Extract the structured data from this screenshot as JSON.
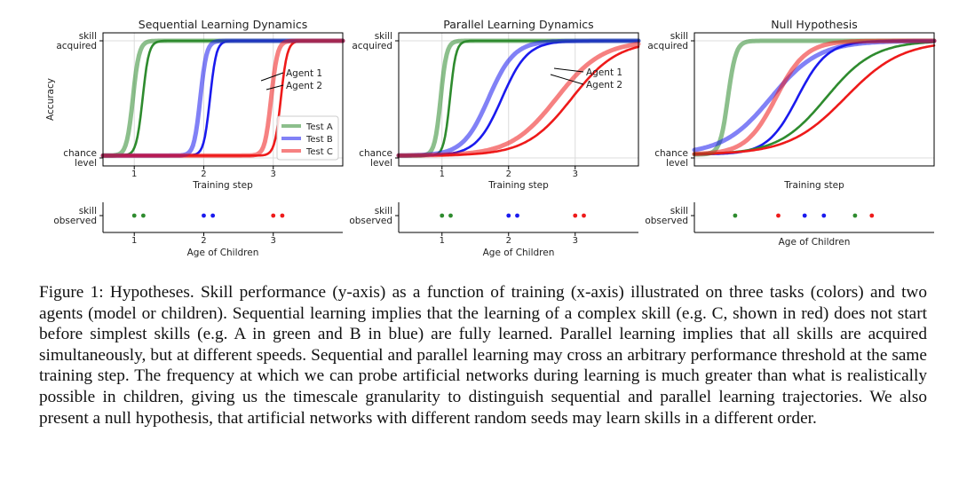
{
  "figure": {
    "colors": {
      "test_a": "#2e8b2e",
      "test_b": "#1a1aee",
      "test_c": "#ee1a1a"
    },
    "chart_data": [
      {
        "type": "line",
        "title": "Sequential Learning Dynamics",
        "xlabel": "Training step",
        "ylabel": "Accuracy",
        "x_ticks": [
          "1",
          "2",
          "3"
        ],
        "x_tick_values": [
          1,
          2,
          3
        ],
        "xlim": [
          0.55,
          4.0
        ],
        "y_tick_labels": {
          "top": [
            "skill",
            "acquired"
          ],
          "bottom": [
            "chance",
            "level"
          ]
        },
        "legend": {
          "position": "lower-right",
          "entries": [
            "Test A",
            "Test B",
            "Test C"
          ]
        },
        "annotations": [
          "Agent 1",
          "Agent 2"
        ],
        "grid": true,
        "series": [
          {
            "name": "Test A",
            "agent": 1,
            "curve": "logistic",
            "midpoint": 0.98,
            "slope": 22,
            "floor": 0.02,
            "ceil": 1.0
          },
          {
            "name": "Test A",
            "agent": 2,
            "curve": "logistic",
            "midpoint": 1.12,
            "slope": 22,
            "floor": 0.02,
            "ceil": 1.0
          },
          {
            "name": "Test B",
            "agent": 1,
            "curve": "logistic",
            "midpoint": 1.95,
            "slope": 22,
            "floor": 0.02,
            "ceil": 1.0
          },
          {
            "name": "Test B",
            "agent": 2,
            "curve": "logistic",
            "midpoint": 2.09,
            "slope": 22,
            "floor": 0.02,
            "ceil": 1.0
          },
          {
            "name": "Test C",
            "agent": 1,
            "curve": "logistic",
            "midpoint": 2.97,
            "slope": 22,
            "floor": 0.02,
            "ceil": 1.0
          },
          {
            "name": "Test C",
            "agent": 2,
            "curve": "logistic",
            "midpoint": 3.11,
            "slope": 22,
            "floor": 0.02,
            "ceil": 1.0
          }
        ]
      },
      {
        "type": "line",
        "title": "Parallel Learning Dynamics",
        "xlabel": "Training step",
        "ylabel": "",
        "x_ticks": [
          "1",
          "2",
          "3"
        ],
        "x_tick_values": [
          1,
          2,
          3
        ],
        "xlim": [
          0.35,
          3.95
        ],
        "y_tick_labels": {
          "top": [
            "skill",
            "acquired"
          ],
          "bottom": [
            "chance",
            "level"
          ]
        },
        "annotations": [
          "Agent 1",
          "Agent 2"
        ],
        "grid": true,
        "series": [
          {
            "name": "Test A",
            "agent": 1,
            "curve": "logistic",
            "midpoint": 0.98,
            "slope": 22,
            "floor": 0.02,
            "ceil": 1.0
          },
          {
            "name": "Test A",
            "agent": 2,
            "curve": "logistic",
            "midpoint": 1.12,
            "slope": 22,
            "floor": 0.02,
            "ceil": 1.0
          },
          {
            "name": "Test B",
            "agent": 1,
            "curve": "logistic",
            "midpoint": 1.7,
            "slope": 5.2,
            "floor": 0.02,
            "ceil": 1.0
          },
          {
            "name": "Test B",
            "agent": 2,
            "curve": "logistic",
            "midpoint": 1.9,
            "slope": 5.2,
            "floor": 0.02,
            "ceil": 1.0
          },
          {
            "name": "Test C",
            "agent": 1,
            "curve": "logistic",
            "midpoint": 2.72,
            "slope": 2.9,
            "floor": 0.02,
            "ceil": 1.0
          },
          {
            "name": "Test C",
            "agent": 2,
            "curve": "logistic",
            "midpoint": 2.95,
            "slope": 2.9,
            "floor": 0.02,
            "ceil": 1.0
          }
        ]
      },
      {
        "type": "line",
        "title": "Null Hypothesis",
        "xlabel": "Training step",
        "ylabel": "",
        "x_ticks": [],
        "xlim": [
          0.0,
          10.0
        ],
        "y_tick_labels": {
          "top": [
            "skill",
            "acquired"
          ],
          "bottom": [
            "chance",
            "level"
          ]
        },
        "grid": true,
        "series": [
          {
            "name": "Test A",
            "agent": 1,
            "curve": "logistic",
            "midpoint": 1.4,
            "slope": 6.0,
            "floor": 0.03,
            "ceil": 1.0
          },
          {
            "name": "Test B",
            "agent": 1,
            "curve": "logistic",
            "midpoint": 3.2,
            "slope": 1.0,
            "floor": 0.03,
            "ceil": 1.0
          },
          {
            "name": "Test C",
            "agent": 1,
            "curve": "logistic",
            "midpoint": 3.4,
            "slope": 1.6,
            "floor": 0.03,
            "ceil": 1.0
          },
          {
            "name": "Test B",
            "agent": 2,
            "curve": "logistic",
            "midpoint": 4.3,
            "slope": 1.6,
            "floor": 0.03,
            "ceil": 1.0
          },
          {
            "name": "Test A",
            "agent": 2,
            "curve": "logistic",
            "midpoint": 5.5,
            "slope": 1.0,
            "floor": 0.03,
            "ceil": 1.0
          },
          {
            "name": "Test C",
            "agent": 2,
            "curve": "logistic",
            "midpoint": 6.3,
            "slope": 0.85,
            "floor": 0.03,
            "ceil": 1.0
          }
        ]
      }
    ],
    "observed": [
      {
        "ylabel": [
          "skill",
          "observed"
        ],
        "xlabel": "Age of Children",
        "x_ticks": [
          "1",
          "2",
          "3"
        ],
        "x_tick_values": [
          1,
          2,
          3
        ],
        "xlim": [
          0.55,
          4.0
        ],
        "points": [
          {
            "x": 1.0,
            "test": "A"
          },
          {
            "x": 1.13,
            "test": "A"
          },
          {
            "x": 2.0,
            "test": "B"
          },
          {
            "x": 2.13,
            "test": "B"
          },
          {
            "x": 3.0,
            "test": "C"
          },
          {
            "x": 3.13,
            "test": "C"
          }
        ]
      },
      {
        "ylabel": [
          "skill",
          "observed"
        ],
        "xlabel": "Age of Children",
        "x_ticks": [
          "1",
          "2",
          "3"
        ],
        "x_tick_values": [
          1,
          2,
          3
        ],
        "xlim": [
          0.35,
          3.95
        ],
        "points": [
          {
            "x": 1.0,
            "test": "A"
          },
          {
            "x": 1.13,
            "test": "A"
          },
          {
            "x": 2.0,
            "test": "B"
          },
          {
            "x": 2.13,
            "test": "B"
          },
          {
            "x": 3.0,
            "test": "C"
          },
          {
            "x": 3.13,
            "test": "C"
          }
        ]
      },
      {
        "ylabel": [
          "skill",
          "observed"
        ],
        "xlabel": "Age of Children",
        "x_ticks": [],
        "xlim": [
          0.0,
          10.0
        ],
        "points": [
          {
            "x": 1.7,
            "test": "A"
          },
          {
            "x": 3.5,
            "test": "C"
          },
          {
            "x": 4.6,
            "test": "B"
          },
          {
            "x": 5.4,
            "test": "B"
          },
          {
            "x": 6.7,
            "test": "A"
          },
          {
            "x": 7.4,
            "test": "C"
          }
        ]
      }
    ]
  },
  "caption": {
    "text": "Figure 1: Hypotheses. Skill performance (y-axis) as a function of training (x-axis) illustrated on three tasks (colors) and two agents (model or children). Sequential learning implies that the learning of a complex skill (e.g. C, shown in red) does not start before simplest skills (e.g. A in green and B in blue) are fully learned. Parallel learning implies that all skills are acquired simultaneously, but at different speeds. Sequential and parallel learning may cross an arbitrary performance threshold at the same training step. The frequency at which we can probe artificial networks during learning is much greater than what is realistically possible in children, giving us the timescale granularity to distinguish sequential and parallel learning trajectories. We also present a null hypothesis, that artificial networks with different random seeds may learn skills in a different order."
  }
}
